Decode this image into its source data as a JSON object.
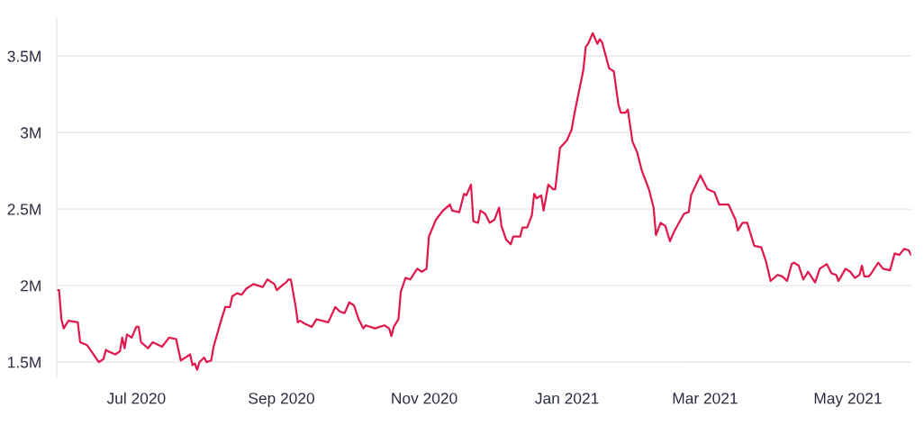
{
  "chart_data": {
    "type": "line",
    "x": [
      "2020-05-28",
      "2020-05-29",
      "2020-05-30",
      "2020-05-31",
      "2020-06-02",
      "2020-06-06",
      "2020-06-07",
      "2020-06-10",
      "2020-06-15",
      "2020-06-17",
      "2020-06-18",
      "2020-06-19",
      "2020-06-22",
      "2020-06-24",
      "2020-06-25",
      "2020-06-26",
      "2020-06-27",
      "2020-06-29",
      "2020-07-01",
      "2020-07-02",
      "2020-07-03",
      "2020-07-06",
      "2020-07-08",
      "2020-07-12",
      "2020-07-15",
      "2020-07-18",
      "2020-07-20",
      "2020-07-24",
      "2020-07-25",
      "2020-07-26",
      "2020-07-27",
      "2020-07-28",
      "2020-07-30",
      "2020-07-31",
      "2020-08-02",
      "2020-08-03",
      "2020-08-06",
      "2020-08-08",
      "2020-08-10",
      "2020-08-11",
      "2020-08-13",
      "2020-08-15",
      "2020-08-17",
      "2020-08-20",
      "2020-08-24",
      "2020-08-26",
      "2020-08-29",
      "2020-08-30",
      "2020-09-02",
      "2020-09-03",
      "2020-09-04",
      "2020-09-05",
      "2020-09-07",
      "2020-09-08",
      "2020-09-09",
      "2020-09-11",
      "2020-09-14",
      "2020-09-16",
      "2020-09-21",
      "2020-09-24",
      "2020-09-26",
      "2020-09-28",
      "2020-09-30",
      "2020-10-02",
      "2020-10-04",
      "2020-10-06",
      "2020-10-07",
      "2020-10-11",
      "2020-10-15",
      "2020-10-17",
      "2020-10-18",
      "2020-10-19",
      "2020-10-21",
      "2020-10-22",
      "2020-10-24",
      "2020-10-26",
      "2020-10-29",
      "2020-10-31",
      "2020-11-02",
      "2020-11-03",
      "2020-11-06",
      "2020-11-09",
      "2020-11-12",
      "2020-11-13",
      "2020-11-16",
      "2020-11-18",
      "2020-11-19",
      "2020-11-21",
      "2020-11-22",
      "2020-11-24",
      "2020-11-25",
      "2020-11-27",
      "2020-11-29",
      "2020-12-01",
      "2020-12-03",
      "2020-12-04",
      "2020-12-06",
      "2020-12-08",
      "2020-12-09",
      "2020-12-12",
      "2020-12-13",
      "2020-12-15",
      "2020-12-17",
      "2020-12-18",
      "2020-12-19",
      "2020-12-21",
      "2020-12-22",
      "2020-12-24",
      "2020-12-26",
      "2020-12-27",
      "2020-12-29",
      "2021-01-01",
      "2021-01-03",
      "2021-01-04",
      "2021-01-06",
      "2021-01-08",
      "2021-01-09",
      "2021-01-10",
      "2021-01-12",
      "2021-01-14",
      "2021-01-15",
      "2021-01-16",
      "2021-01-19",
      "2021-01-21",
      "2021-01-23",
      "2021-01-24",
      "2021-01-26",
      "2021-01-27",
      "2021-01-29",
      "2021-01-31",
      "2021-02-02",
      "2021-02-04",
      "2021-02-05",
      "2021-02-07",
      "2021-02-08",
      "2021-02-10",
      "2021-02-12",
      "2021-02-14",
      "2021-02-16",
      "2021-02-20",
      "2021-02-22",
      "2021-02-23",
      "2021-02-27",
      "2021-03-02",
      "2021-03-05",
      "2021-03-07",
      "2021-03-11",
      "2021-03-14",
      "2021-03-15",
      "2021-03-17",
      "2021-03-19",
      "2021-03-22",
      "2021-03-25",
      "2021-03-27",
      "2021-03-29",
      "2021-04-01",
      "2021-04-03",
      "2021-04-05",
      "2021-04-07",
      "2021-04-08",
      "2021-04-10",
      "2021-04-12",
      "2021-04-14",
      "2021-04-17",
      "2021-04-19",
      "2021-04-20",
      "2021-04-22",
      "2021-04-24",
      "2021-04-26",
      "2021-04-27",
      "2021-04-30",
      "2021-05-02",
      "2021-05-04",
      "2021-05-06",
      "2021-05-07",
      "2021-05-08",
      "2021-05-10",
      "2021-05-11",
      "2021-05-14",
      "2021-05-16",
      "2021-05-19",
      "2021-05-21",
      "2021-05-23",
      "2021-05-25",
      "2021-05-27",
      "2021-05-28"
    ],
    "series": [
      {
        "color": "#e0184c",
        "values": [
          1970000,
          1970000,
          1780000,
          1720000,
          1770000,
          1760000,
          1630000,
          1610000,
          1500000,
          1520000,
          1580000,
          1570000,
          1550000,
          1570000,
          1660000,
          1590000,
          1680000,
          1660000,
          1730000,
          1730000,
          1630000,
          1590000,
          1630000,
          1600000,
          1660000,
          1650000,
          1510000,
          1550000,
          1480000,
          1490000,
          1450000,
          1500000,
          1530000,
          1500000,
          1510000,
          1600000,
          1760000,
          1860000,
          1860000,
          1930000,
          1950000,
          1940000,
          1980000,
          2010000,
          1990000,
          2040000,
          2010000,
          1970000,
          2010000,
          2020000,
          2040000,
          2040000,
          1870000,
          1760000,
          1770000,
          1750000,
          1730000,
          1780000,
          1760000,
          1860000,
          1830000,
          1820000,
          1890000,
          1870000,
          1780000,
          1720000,
          1740000,
          1720000,
          1740000,
          1720000,
          1670000,
          1730000,
          1780000,
          1960000,
          2050000,
          2040000,
          2110000,
          2090000,
          2110000,
          2320000,
          2430000,
          2490000,
          2530000,
          2490000,
          2480000,
          2600000,
          2590000,
          2660000,
          2420000,
          2410000,
          2490000,
          2470000,
          2410000,
          2430000,
          2510000,
          2390000,
          2300000,
          2270000,
          2320000,
          2320000,
          2380000,
          2380000,
          2460000,
          2600000,
          2570000,
          2590000,
          2490000,
          2660000,
          2630000,
          2630000,
          2900000,
          2950000,
          3020000,
          3110000,
          3260000,
          3410000,
          3560000,
          3580000,
          3650000,
          3580000,
          3610000,
          3590000,
          3420000,
          3400000,
          3180000,
          3130000,
          3130000,
          3150000,
          2940000,
          2870000,
          2750000,
          2670000,
          2630000,
          2510000,
          2330000,
          2410000,
          2390000,
          2290000,
          2360000,
          2470000,
          2480000,
          2590000,
          2720000,
          2630000,
          2610000,
          2530000,
          2530000,
          2430000,
          2360000,
          2410000,
          2410000,
          2260000,
          2250000,
          2160000,
          2030000,
          2070000,
          2060000,
          2030000,
          2140000,
          2150000,
          2130000,
          2040000,
          2090000,
          2020000,
          2110000,
          2120000,
          2140000,
          2080000,
          2070000,
          2030000,
          2110000,
          2090000,
          2050000,
          2070000,
          2130000,
          2060000,
          2060000,
          2080000,
          2150000,
          2110000,
          2100000,
          2210000,
          2200000,
          2240000,
          2230000,
          2200000
        ]
      }
    ],
    "xlim": [
      "2020-05-28",
      "2021-05-28"
    ],
    "xticks": [
      {
        "value": "2020-07-01",
        "label": "Jul 2020"
      },
      {
        "value": "2020-09-01",
        "label": "Sep 2020"
      },
      {
        "value": "2020-11-01",
        "label": "Nov 2020"
      },
      {
        "value": "2021-01-01",
        "label": "Jan 2021"
      },
      {
        "value": "2021-03-01",
        "label": "Mar 2021"
      },
      {
        "value": "2021-05-01",
        "label": "May 2021"
      }
    ],
    "ylim": [
      1400000,
      3750000
    ],
    "yticks": [
      {
        "value": 1500000,
        "label": "1.5M"
      },
      {
        "value": 2000000,
        "label": "2M"
      },
      {
        "value": 2500000,
        "label": "2.5M"
      },
      {
        "value": 3000000,
        "label": "3M"
      },
      {
        "value": 3500000,
        "label": "3.5M"
      }
    ],
    "grid": "y",
    "marker": "none",
    "line_style": "solid"
  }
}
